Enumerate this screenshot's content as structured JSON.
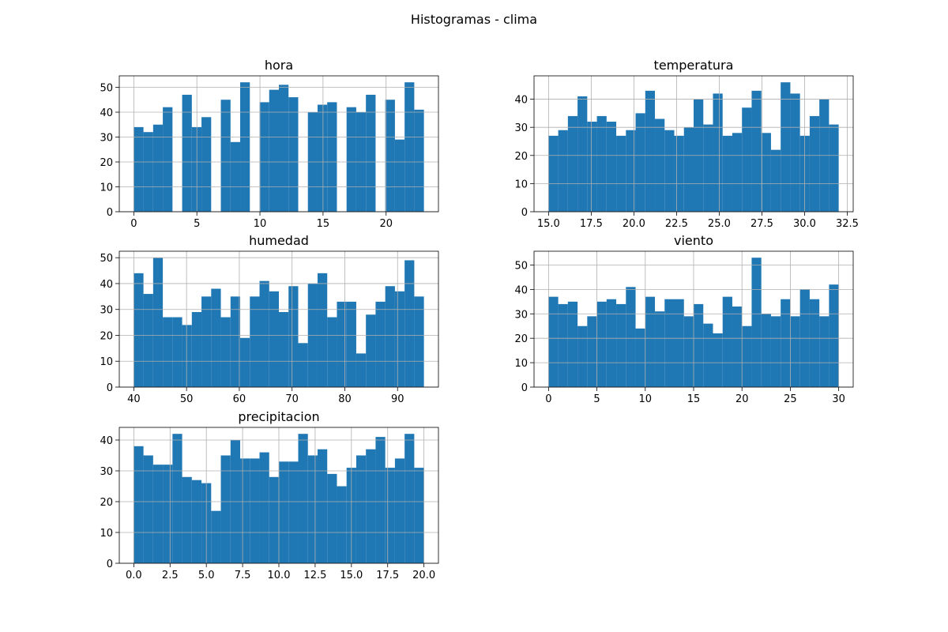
{
  "title": "Histogramas - clima",
  "chart_data": [
    {
      "type": "histogram",
      "title": "hora",
      "color": "#1f77b4",
      "grid": true,
      "bins": [
        0,
        0.767,
        1.533,
        2.3,
        3.067,
        3.833,
        4.6,
        5.367,
        6.133,
        6.9,
        7.667,
        8.433,
        9.2,
        9.967,
        10.733,
        11.5,
        12.267,
        13.033,
        13.8,
        14.567,
        15.333,
        16.1,
        16.867,
        17.633,
        18.4,
        19.167,
        19.933,
        20.7,
        21.467,
        22.233,
        23
      ],
      "values": [
        34,
        32,
        35,
        42,
        0,
        47,
        34,
        38,
        0,
        45,
        28,
        52,
        0,
        44,
        49,
        51,
        46,
        0,
        40,
        43,
        44,
        0,
        42,
        40,
        47,
        0,
        45,
        29,
        52,
        41
      ],
      "xlim": [
        -1.15,
        24.15
      ],
      "xticks": [
        0,
        5,
        10,
        15,
        20
      ],
      "ylim": [
        0,
        54.6
      ],
      "yticks": [
        0,
        10,
        20,
        30,
        40,
        50
      ]
    },
    {
      "type": "histogram",
      "title": "temperatura",
      "color": "#1f77b4",
      "grid": true,
      "bins": [
        15,
        15.567,
        16.133,
        16.7,
        17.267,
        17.833,
        18.4,
        18.967,
        19.533,
        20.1,
        20.667,
        21.233,
        21.8,
        22.367,
        22.933,
        23.5,
        24.067,
        24.633,
        25.2,
        25.767,
        26.333,
        26.9,
        27.467,
        28.033,
        28.6,
        29.167,
        29.733,
        30.3,
        30.867,
        31.433,
        32
      ],
      "values": [
        27,
        29,
        34,
        41,
        32,
        34,
        32,
        27,
        29,
        35,
        43,
        33,
        29,
        27,
        30,
        40,
        31,
        42,
        27,
        28,
        37,
        43,
        28,
        22,
        46,
        42,
        27,
        34,
        40,
        31
      ],
      "xlim": [
        14.15,
        32.85
      ],
      "xticks": [
        {
          "value": 15,
          "label": "15.0"
        },
        17.5,
        {
          "value": 20,
          "label": "20.0"
        },
        22.5,
        {
          "value": 25,
          "label": "25.0"
        },
        27.5,
        {
          "value": 30,
          "label": "30.0"
        },
        32.5
      ],
      "ylim": [
        0,
        48.3
      ],
      "yticks": [
        0,
        10,
        20,
        30,
        40
      ]
    },
    {
      "type": "histogram",
      "title": "humedad",
      "color": "#1f77b4",
      "grid": true,
      "bins": [
        40,
        41.833,
        43.667,
        45.5,
        47.333,
        49.167,
        51,
        52.833,
        54.667,
        56.5,
        58.333,
        60.167,
        62,
        63.833,
        65.667,
        67.5,
        69.333,
        71.167,
        73,
        74.833,
        76.667,
        78.5,
        80.333,
        82.167,
        84,
        85.833,
        87.667,
        89.5,
        91.333,
        93.167,
        95
      ],
      "values": [
        44,
        36,
        50,
        27,
        27,
        24,
        29,
        35,
        38,
        27,
        35,
        19,
        35,
        41,
        37,
        29,
        39,
        17,
        40,
        44,
        27,
        33,
        33,
        13,
        28,
        33,
        39,
        37,
        49,
        35
      ],
      "xlim": [
        37.25,
        97.75
      ],
      "xticks": [
        40,
        50,
        60,
        70,
        80,
        90
      ],
      "ylim": [
        0,
        52.5
      ],
      "yticks": [
        0,
        10,
        20,
        30,
        40,
        50
      ]
    },
    {
      "type": "histogram",
      "title": "viento",
      "color": "#1f77b4",
      "grid": true,
      "bins": [
        0,
        1,
        2,
        3,
        4,
        5,
        6,
        7,
        8,
        9,
        10,
        11,
        12,
        13,
        14,
        15,
        16,
        17,
        18,
        19,
        20,
        21,
        22,
        23,
        24,
        25,
        26,
        27,
        28,
        29,
        30
      ],
      "values": [
        37,
        34,
        35,
        25,
        29,
        35,
        36,
        34,
        41,
        24,
        37,
        31,
        36,
        36,
        29,
        34,
        26,
        22,
        37,
        33,
        25,
        53,
        30,
        29,
        36,
        29,
        40,
        36,
        29,
        42
      ],
      "xlim": [
        -1.5,
        31.5
      ],
      "xticks": [
        0,
        5,
        10,
        15,
        20,
        25,
        30
      ],
      "ylim": [
        0,
        55.65
      ],
      "yticks": [
        0,
        10,
        20,
        30,
        40,
        50
      ]
    },
    {
      "type": "histogram",
      "title": "precipitacion",
      "color": "#1f77b4",
      "grid": true,
      "bins": [
        0,
        0.667,
        1.333,
        2,
        2.667,
        3.333,
        4,
        4.667,
        5.333,
        6,
        6.667,
        7.333,
        8,
        8.667,
        9.333,
        10,
        10.667,
        11.333,
        12,
        12.667,
        13.333,
        14,
        14.667,
        15.333,
        16,
        16.667,
        17.333,
        18,
        18.667,
        19.333,
        20
      ],
      "values": [
        38,
        35,
        32,
        32,
        42,
        28,
        27,
        26,
        17,
        35,
        40,
        34,
        34,
        36,
        28,
        33,
        33,
        42,
        35,
        37,
        29,
        25,
        31,
        35,
        37,
        41,
        31,
        34,
        42,
        31
      ],
      "xlim": [
        -1,
        21
      ],
      "xticks": [
        {
          "value": 0,
          "label": "0.0"
        },
        2.5,
        {
          "value": 5,
          "label": "5.0"
        },
        7.5,
        {
          "value": 10,
          "label": "10.0"
        },
        12.5,
        {
          "value": 15,
          "label": "15.0"
        },
        17.5,
        {
          "value": 20,
          "label": "20.0"
        }
      ],
      "ylim": [
        0,
        44.1
      ],
      "yticks": [
        0,
        10,
        20,
        30,
        40
      ]
    }
  ]
}
